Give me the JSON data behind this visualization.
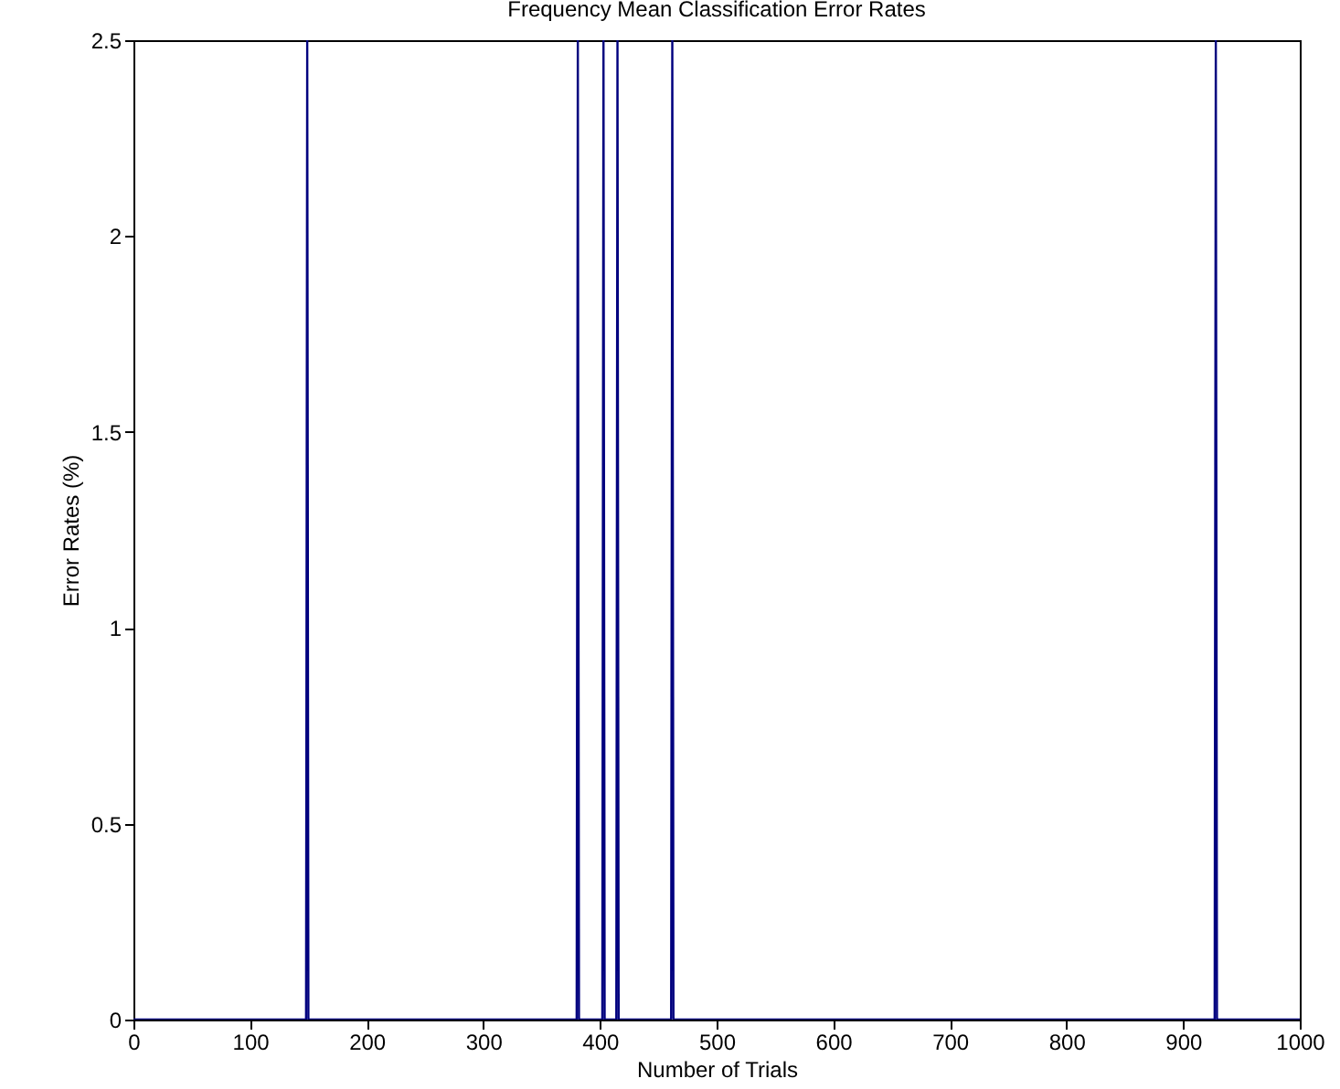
{
  "chart_data": {
    "type": "line",
    "title": "Frequency Mean Classification Error Rates",
    "xlabel": "Number of Trials",
    "ylabel": "Error Rates (%)",
    "x": [
      0,
      148,
      149,
      150,
      380,
      381,
      382,
      402,
      403,
      404,
      414,
      415,
      416,
      461,
      462,
      463,
      927,
      928,
      929,
      1000
    ],
    "series": [
      {
        "color": "#00007f",
        "values": [
          0,
          0,
          2.5,
          0,
          0,
          2.5,
          0,
          0,
          2.5,
          0,
          0,
          2.5,
          0,
          0,
          2.5,
          0,
          0,
          2.5,
          0,
          0
        ]
      }
    ],
    "xlim": [
      0,
      1000
    ],
    "xticks": [
      0,
      100,
      200,
      300,
      400,
      500,
      600,
      700,
      800,
      900,
      1000
    ],
    "ylim": [
      0,
      2.5
    ],
    "yticks": [
      0,
      0.5,
      1,
      1.5,
      2,
      2.5
    ],
    "grid": false
  }
}
